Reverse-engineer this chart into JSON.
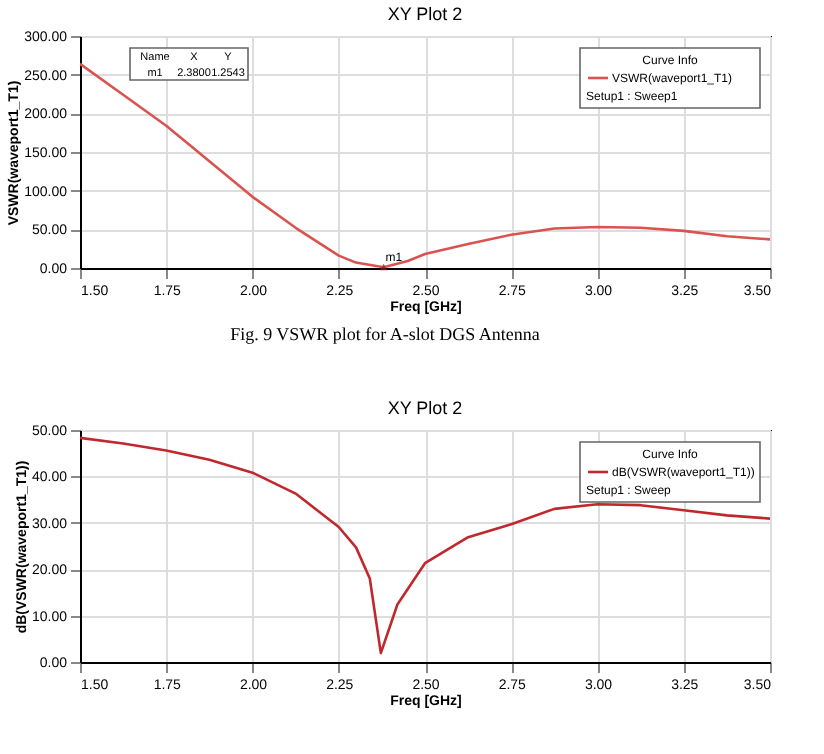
{
  "chart_data": [
    {
      "type": "line",
      "title": "XY Plot 2",
      "xlabel": "Freq [GHz]",
      "ylabel": "VSWR(waveport1_T1)",
      "legend_title": "Curve Info",
      "legend": "top right",
      "grid": true,
      "marker": "none",
      "line_style": "solid",
      "x": [
        1.5,
        1.625,
        1.75,
        1.875,
        2.0,
        2.125,
        2.25,
        2.3,
        2.38,
        2.45,
        2.5,
        2.625,
        2.75,
        2.875,
        3.0,
        3.125,
        3.25,
        3.375,
        3.5
      ],
      "series": [
        {
          "name": "VSWR(waveport1_T1)\nSetup1 : Sweep1",
          "color": "#d9534f",
          "values": [
            264,
            224,
            184,
            138,
            92,
            52,
            16,
            7,
            1,
            9,
            18,
            31,
            43,
            51,
            53,
            52,
            48,
            41,
            37
          ]
        }
      ],
      "xlim": [
        1.5,
        3.5
      ],
      "xticks": [
        {
          "value": 1.5,
          "label": "1.50"
        },
        {
          "value": 1.75,
          "label": "1.75"
        },
        {
          "value": 2.0,
          "label": "2.00"
        },
        {
          "value": 2.25,
          "label": "2.25"
        },
        {
          "value": 2.5,
          "label": "2.50"
        },
        {
          "value": 2.75,
          "label": "2.75"
        },
        {
          "value": 3.0,
          "label": "3.00"
        },
        {
          "value": 3.25,
          "label": "3.25"
        },
        {
          "value": 3.5,
          "label": "3.50"
        }
      ],
      "ylim": [
        0,
        300
      ],
      "yticks": [
        {
          "value": 0,
          "label": "0.00"
        },
        {
          "value": 50,
          "label": "50.00"
        },
        {
          "value": 100,
          "label": "100.00"
        },
        {
          "value": 150,
          "label": "150.00"
        },
        {
          "value": 200,
          "label": "200.00"
        },
        {
          "value": 250,
          "label": "250.00"
        },
        {
          "value": 300,
          "label": "300.00"
        }
      ],
      "annotations": [
        "Fig. 9 VSWR plot for A-slot DGS Antenna",
        "Name",
        "X",
        "Y",
        "m1",
        "2.3800",
        "1.2543",
        {
          "text": "m1",
          "x": 2.38,
          "y": 1.2543
        }
      ]
    },
    {
      "type": "line",
      "title": "XY Plot 2",
      "xlabel": "Freq [GHz]",
      "ylabel": "dB(VSWR(waveport1_T1))",
      "legend_title": "Curve Info",
      "legend": "top right",
      "grid": true,
      "marker": "none",
      "line_style": "solid",
      "x": [
        1.5,
        1.625,
        1.75,
        1.875,
        2.0,
        2.125,
        2.25,
        2.3,
        2.34,
        2.372,
        2.42,
        2.5,
        2.625,
        2.75,
        2.875,
        3.0,
        3.125,
        3.25,
        3.375,
        3.5
      ],
      "series": [
        {
          "name": "dB(VSWR(waveport1_T1))\nSetup1 : Sweep",
          "color": "#c0282d",
          "values": [
            48.3,
            47.1,
            45.6,
            43.6,
            40.8,
            36.3,
            29.1,
            24.7,
            18,
            1.9,
            12.4,
            21.3,
            26.9,
            29.7,
            33,
            34,
            33.8,
            32.7,
            31.6,
            30.9
          ]
        }
      ],
      "xlim": [
        1.5,
        3.5
      ],
      "xticks": [
        {
          "value": 1.5,
          "label": "1.50"
        },
        {
          "value": 1.75,
          "label": "1.75"
        },
        {
          "value": 2.0,
          "label": "2.00"
        },
        {
          "value": 2.25,
          "label": "2.25"
        },
        {
          "value": 2.5,
          "label": "2.50"
        },
        {
          "value": 2.75,
          "label": "2.75"
        },
        {
          "value": 3.0,
          "label": "3.00"
        },
        {
          "value": 3.25,
          "label": "3.25"
        },
        {
          "value": 3.5,
          "label": "3.50"
        }
      ],
      "ylim": [
        0,
        50
      ],
      "yticks": [
        {
          "value": 0,
          "label": "0.00"
        },
        {
          "value": 10,
          "label": "10.00"
        },
        {
          "value": 20,
          "label": "20.00"
        },
        {
          "value": 30,
          "label": "30.00"
        },
        {
          "value": 40,
          "label": "40.00"
        },
        {
          "value": 50,
          "label": "50.00"
        }
      ]
    }
  ]
}
